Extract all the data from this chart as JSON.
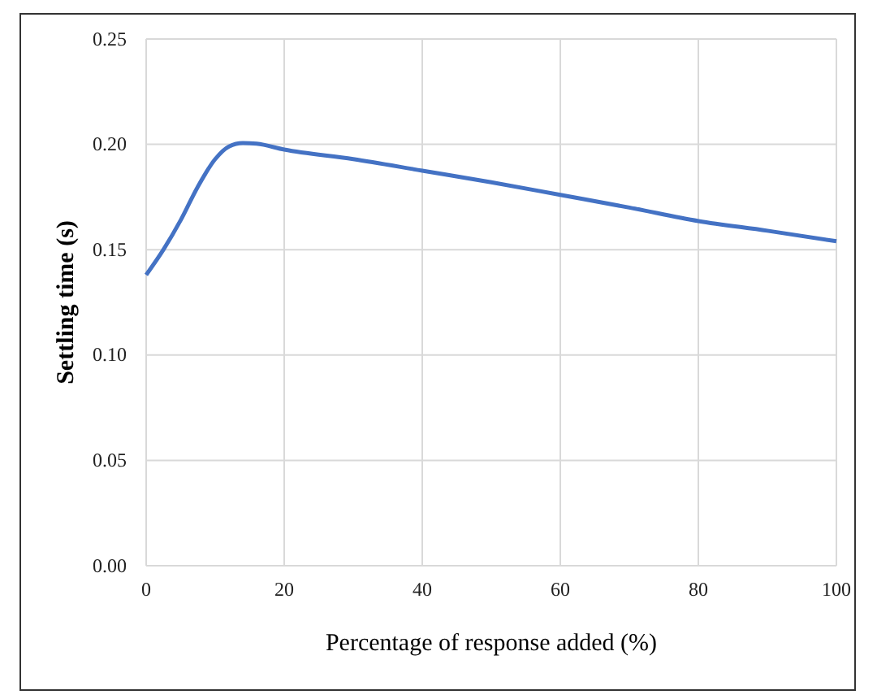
{
  "chart_data": {
    "type": "line",
    "xlabel": "Percentage of response added (%)",
    "ylabel": "Settling time (s)",
    "x": [
      0,
      2.5,
      5,
      7.5,
      10,
      12,
      14,
      16,
      20,
      30,
      40,
      50,
      60,
      70,
      80,
      90,
      100
    ],
    "series": [
      {
        "color": "#4472c4",
        "values": [
          0.138,
          0.15,
          0.164,
          0.18,
          0.193,
          0.199,
          0.2006,
          0.2003,
          0.1975,
          0.193,
          0.1875,
          0.182,
          0.176,
          0.17,
          0.1636,
          0.159,
          0.154
        ]
      }
    ],
    "xlim": [
      0,
      100
    ],
    "xticks": [
      0,
      20,
      40,
      60,
      80,
      100
    ],
    "ylim": [
      0,
      0.25
    ],
    "yticks": [
      {
        "value": 0,
        "label": "0.00"
      },
      {
        "value": 0.05,
        "label": "0.05"
      },
      {
        "value": 0.1,
        "label": "0.10"
      },
      {
        "value": 0.15,
        "label": "0.15"
      },
      {
        "value": 0.2,
        "label": "0.20"
      },
      {
        "value": 0.25,
        "label": "0.25"
      }
    ],
    "grid": true,
    "marker": "none",
    "line_style": "solid"
  }
}
